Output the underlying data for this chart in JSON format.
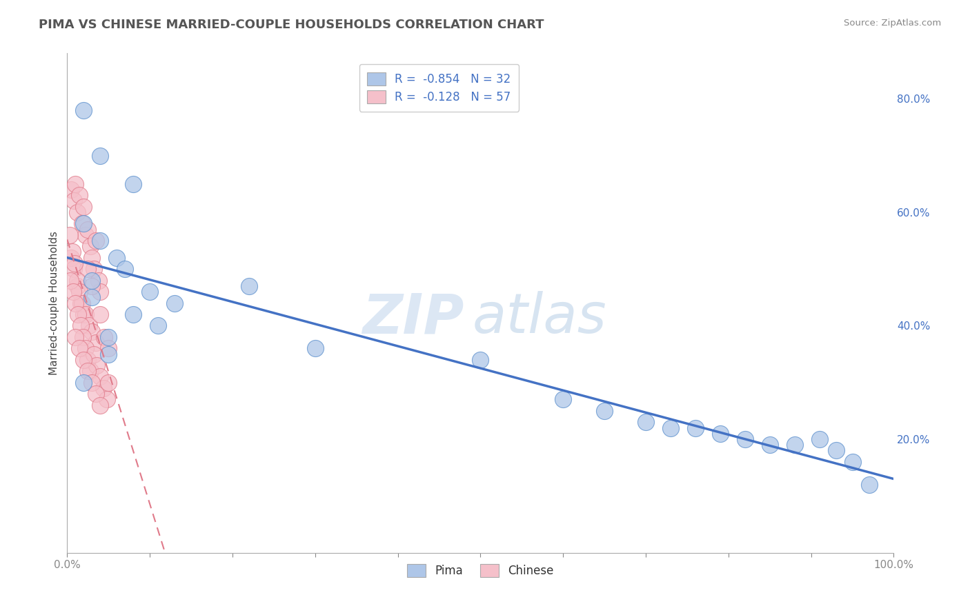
{
  "title": "PIMA VS CHINESE MARRIED-COUPLE HOUSEHOLDS CORRELATION CHART",
  "source_text": "Source: ZipAtlas.com",
  "ylabel": "Married-couple Households",
  "xlim": [
    0.0,
    1.0
  ],
  "ylim": [
    0.0,
    0.88
  ],
  "xticks": [
    0.0,
    0.1,
    0.2,
    0.3,
    0.4,
    0.5,
    0.6,
    0.7,
    0.8,
    0.9,
    1.0
  ],
  "xticklabels": [
    "0.0%",
    "",
    "",
    "",
    "",
    "",
    "",
    "",
    "",
    "",
    "100.0%"
  ],
  "yticks": [
    0.2,
    0.4,
    0.6,
    0.8
  ],
  "yticklabels": [
    "20.0%",
    "40.0%",
    "60.0%",
    "80.0%"
  ],
  "legend_labels": [
    "R =  -0.854   N = 32",
    "R =  -0.128   N = 57"
  ],
  "legend_bottom_labels": [
    "Pima",
    "Chinese"
  ],
  "pima_color": "#aec6e8",
  "pima_edge_color": "#5b8fcc",
  "pima_line_color": "#4472c4",
  "chinese_color": "#f5c0ca",
  "chinese_edge_color": "#e07a8a",
  "chinese_line_color": "#e07a8a",
  "watermark_zip": "ZIP",
  "watermark_atlas": "atlas",
  "background_color": "#ffffff",
  "pima_x": [
    0.02,
    0.04,
    0.08,
    0.02,
    0.04,
    0.06,
    0.07,
    0.03,
    0.1,
    0.13,
    0.08,
    0.11,
    0.3,
    0.5,
    0.6,
    0.65,
    0.7,
    0.73,
    0.76,
    0.79,
    0.82,
    0.85,
    0.88,
    0.91,
    0.93,
    0.95,
    0.97,
    0.22,
    0.05,
    0.05,
    0.02,
    0.03
  ],
  "pima_y": [
    0.78,
    0.7,
    0.65,
    0.58,
    0.55,
    0.52,
    0.5,
    0.48,
    0.46,
    0.44,
    0.42,
    0.4,
    0.36,
    0.34,
    0.27,
    0.25,
    0.23,
    0.22,
    0.22,
    0.21,
    0.2,
    0.19,
    0.19,
    0.2,
    0.18,
    0.16,
    0.12,
    0.47,
    0.38,
    0.35,
    0.3,
    0.45
  ],
  "chinese_x": [
    0.005,
    0.008,
    0.01,
    0.012,
    0.015,
    0.018,
    0.02,
    0.022,
    0.025,
    0.028,
    0.03,
    0.032,
    0.035,
    0.038,
    0.04,
    0.005,
    0.008,
    0.012,
    0.016,
    0.02,
    0.025,
    0.03,
    0.003,
    0.006,
    0.009,
    0.012,
    0.015,
    0.018,
    0.022,
    0.026,
    0.03,
    0.035,
    0.04,
    0.045,
    0.05,
    0.004,
    0.007,
    0.01,
    0.013,
    0.016,
    0.019,
    0.022,
    0.025,
    0.028,
    0.032,
    0.036,
    0.04,
    0.044,
    0.048,
    0.01,
    0.015,
    0.02,
    0.025,
    0.03,
    0.035,
    0.04,
    0.05
  ],
  "chinese_y": [
    0.64,
    0.62,
    0.65,
    0.6,
    0.63,
    0.58,
    0.61,
    0.56,
    0.57,
    0.54,
    0.52,
    0.5,
    0.55,
    0.48,
    0.46,
    0.52,
    0.5,
    0.47,
    0.44,
    0.42,
    0.5,
    0.47,
    0.56,
    0.53,
    0.51,
    0.48,
    0.46,
    0.44,
    0.42,
    0.4,
    0.39,
    0.37,
    0.42,
    0.38,
    0.36,
    0.48,
    0.46,
    0.44,
    0.42,
    0.4,
    0.38,
    0.36,
    0.34,
    0.32,
    0.35,
    0.33,
    0.31,
    0.29,
    0.27,
    0.38,
    0.36,
    0.34,
    0.32,
    0.3,
    0.28,
    0.26,
    0.3
  ],
  "title_color": "#555555",
  "tick_color": "#4472c4",
  "grid_color": "#c8c8c8",
  "right_yaxis": true
}
